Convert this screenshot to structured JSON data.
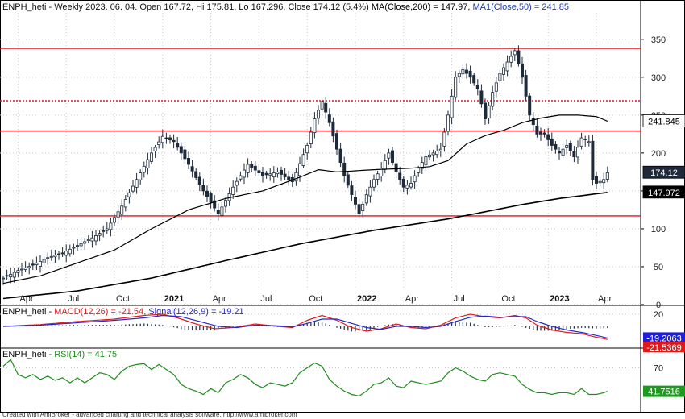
{
  "chart_data": {
    "type": "candlestick",
    "colors": {
      "up": "#ffffff",
      "down": "#1e2a3a",
      "wick": "#1e2a3a",
      "ma200": "#000000",
      "ma50": "#000000",
      "hline": "#e0141e",
      "macd": "#dc1e1e",
      "signal": "#2828c8",
      "hist": "#2a3850",
      "rsi": "#1e8c1e",
      "grid": "#c8c8c8"
    },
    "header": {
      "prefix": "ENPH_heti - Weekly 2023. 06. 04. Open 167.72, Hi 175.81, Lo 167.296, Close 174.12 (5.4%) ",
      "ma200_label": "MA(Close,200) = 147.97, ",
      "ma50_label": "MA1(Close,50) = 241.85"
    },
    "price_panel": {
      "ylim": [
        0,
        370
      ],
      "yticks": [
        0,
        50,
        100,
        150,
        200,
        250,
        300,
        350
      ],
      "x_labels": [
        {
          "label": "Apr",
          "week": 4,
          "bold": false
        },
        {
          "label": "Jul",
          "week": 17,
          "bold": false
        },
        {
          "label": "Oct",
          "week": 30,
          "bold": false
        },
        {
          "label": "2021",
          "week": 43,
          "bold": true
        },
        {
          "label": "Apr",
          "week": 56,
          "bold": false
        },
        {
          "label": "Jul",
          "week": 69,
          "bold": false
        },
        {
          "label": "Oct",
          "week": 82,
          "bold": false
        },
        {
          "label": "2022",
          "week": 95,
          "bold": true
        },
        {
          "label": "Apr",
          "week": 108,
          "bold": false
        },
        {
          "label": "Jul",
          "week": 121,
          "bold": false
        },
        {
          "label": "Oct",
          "week": 134,
          "bold": false
        },
        {
          "label": "2023",
          "week": 147,
          "bold": true
        },
        {
          "label": "Apr",
          "week": 160,
          "bold": false
        }
      ],
      "horizontal_lines": [
        {
          "value": 338,
          "style": "solid"
        },
        {
          "value": 269,
          "style": "dotted"
        },
        {
          "value": 229,
          "style": "solid"
        },
        {
          "value": 117,
          "style": "solid"
        }
      ],
      "price_tags": [
        {
          "label": "241.845",
          "value": 241.845,
          "bg": "#ffffff",
          "fg": "#000000"
        },
        {
          "label": "174.12",
          "value": 174.12,
          "bg": "#1e2a3a",
          "fg": "#ffffff"
        },
        {
          "label": "147.972",
          "value": 147.972,
          "bg": "#000000",
          "fg": "#ffffff"
        }
      ],
      "close_anchors": [
        [
          0,
          35
        ],
        [
          4,
          45
        ],
        [
          8,
          52
        ],
        [
          12,
          62
        ],
        [
          16,
          68
        ],
        [
          20,
          78
        ],
        [
          24,
          88
        ],
        [
          28,
          100
        ],
        [
          32,
          130
        ],
        [
          36,
          165
        ],
        [
          40,
          200
        ],
        [
          43,
          222
        ],
        [
          46,
          215
        ],
        [
          50,
          185
        ],
        [
          54,
          150
        ],
        [
          58,
          120
        ],
        [
          62,
          155
        ],
        [
          66,
          185
        ],
        [
          70,
          170
        ],
        [
          74,
          175
        ],
        [
          78,
          162
        ],
        [
          82,
          210
        ],
        [
          84,
          245
        ],
        [
          86,
          268
        ],
        [
          88,
          240
        ],
        [
          90,
          205
        ],
        [
          92,
          170
        ],
        [
          94,
          145
        ],
        [
          96,
          120
        ],
        [
          98,
          145
        ],
        [
          100,
          165
        ],
        [
          102,
          180
        ],
        [
          104,
          200
        ],
        [
          106,
          175
        ],
        [
          108,
          155
        ],
        [
          110,
          160
        ],
        [
          112,
          180
        ],
        [
          114,
          195
        ],
        [
          116,
          200
        ],
        [
          118,
          205
        ],
        [
          120,
          250
        ],
        [
          122,
          300
        ],
        [
          124,
          310
        ],
        [
          126,
          300
        ],
        [
          128,
          285
        ],
        [
          130,
          245
        ],
        [
          132,
          280
        ],
        [
          134,
          305
        ],
        [
          136,
          320
        ],
        [
          138,
          335
        ],
        [
          140,
          300
        ],
        [
          142,
          250
        ],
        [
          144,
          225
        ],
        [
          146,
          225
        ],
        [
          148,
          210
        ],
        [
          150,
          200
        ],
        [
          152,
          210
        ],
        [
          154,
          195
        ],
        [
          156,
          220
        ],
        [
          158,
          215
        ],
        [
          159,
          165
        ],
        [
          160,
          160
        ],
        [
          162,
          165
        ],
        [
          163,
          174
        ]
      ],
      "ma200_anchors": [
        [
          0,
          8
        ],
        [
          20,
          18
        ],
        [
          40,
          35
        ],
        [
          60,
          58
        ],
        [
          80,
          80
        ],
        [
          100,
          98
        ],
        [
          120,
          113
        ],
        [
          140,
          132
        ],
        [
          150,
          140
        ],
        [
          163,
          148
        ]
      ],
      "ma50_anchors": [
        [
          0,
          28
        ],
        [
          10,
          38
        ],
        [
          20,
          55
        ],
        [
          30,
          72
        ],
        [
          40,
          100
        ],
        [
          50,
          125
        ],
        [
          60,
          140
        ],
        [
          70,
          150
        ],
        [
          80,
          168
        ],
        [
          85,
          178
        ],
        [
          90,
          175
        ],
        [
          100,
          178
        ],
        [
          110,
          180
        ],
        [
          115,
          182
        ],
        [
          120,
          190
        ],
        [
          125,
          212
        ],
        [
          130,
          223
        ],
        [
          135,
          230
        ],
        [
          140,
          240
        ],
        [
          145,
          246
        ],
        [
          150,
          250
        ],
        [
          155,
          250
        ],
        [
          160,
          248
        ],
        [
          163,
          242
        ]
      ]
    },
    "macd_panel": {
      "title_prefix": "ENPH_heti - ",
      "macd_label": "MACD(12,26) = -21.54, ",
      "signal_label": "Signal(12,26,9) = -19.21",
      "ylim": [
        -32,
        32
      ],
      "yticks": [
        20
      ],
      "macd_tag": "-21.5369",
      "signal_tag": "-19.2063",
      "macd_last": -21.54,
      "signal_last": -19.21,
      "macd_anchors": [
        [
          0,
          0
        ],
        [
          10,
          3
        ],
        [
          20,
          8
        ],
        [
          30,
          12
        ],
        [
          38,
          18
        ],
        [
          43,
          20
        ],
        [
          47,
          14
        ],
        [
          52,
          4
        ],
        [
          57,
          -4
        ],
        [
          62,
          -2
        ],
        [
          68,
          4
        ],
        [
          74,
          0
        ],
        [
          78,
          -2
        ],
        [
          82,
          10
        ],
        [
          86,
          18
        ],
        [
          90,
          10
        ],
        [
          94,
          -2
        ],
        [
          98,
          -8
        ],
        [
          102,
          -4
        ],
        [
          106,
          4
        ],
        [
          110,
          -2
        ],
        [
          114,
          -4
        ],
        [
          118,
          2
        ],
        [
          122,
          14
        ],
        [
          126,
          20
        ],
        [
          130,
          16
        ],
        [
          134,
          14
        ],
        [
          138,
          18
        ],
        [
          141,
          14
        ],
        [
          144,
          2
        ],
        [
          148,
          -6
        ],
        [
          152,
          -10
        ],
        [
          156,
          -12
        ],
        [
          160,
          -18
        ],
        [
          163,
          -21.54
        ]
      ],
      "signal_anchors": [
        [
          0,
          0
        ],
        [
          10,
          2
        ],
        [
          20,
          6
        ],
        [
          30,
          10
        ],
        [
          38,
          14
        ],
        [
          43,
          18
        ],
        [
          48,
          16
        ],
        [
          53,
          8
        ],
        [
          58,
          0
        ],
        [
          63,
          -2
        ],
        [
          68,
          2
        ],
        [
          74,
          1
        ],
        [
          78,
          -1
        ],
        [
          82,
          5
        ],
        [
          86,
          12
        ],
        [
          90,
          12
        ],
        [
          94,
          5
        ],
        [
          98,
          -2
        ],
        [
          102,
          -5
        ],
        [
          106,
          0
        ],
        [
          110,
          0
        ],
        [
          114,
          -2
        ],
        [
          118,
          0
        ],
        [
          122,
          8
        ],
        [
          126,
          15
        ],
        [
          130,
          17
        ],
        [
          134,
          15
        ],
        [
          138,
          16
        ],
        [
          141,
          16
        ],
        [
          144,
          8
        ],
        [
          148,
          0
        ],
        [
          152,
          -6
        ],
        [
          156,
          -10
        ],
        [
          160,
          -15
        ],
        [
          163,
          -19.21
        ]
      ]
    },
    "rsi_panel": {
      "title_prefix": "ENPH_heti - ",
      "rsi_label": "RSI(14) = 41.75",
      "ylim": [
        20,
        88
      ],
      "yticks": [
        70
      ],
      "rsi_tag": "41.7516",
      "rsi_last": 41.75,
      "rsi_anchors": [
        [
          0,
          72
        ],
        [
          2,
          80
        ],
        [
          4,
          62
        ],
        [
          6,
          58
        ],
        [
          8,
          62
        ],
        [
          10,
          56
        ],
        [
          12,
          60
        ],
        [
          14,
          55
        ],
        [
          16,
          58
        ],
        [
          18,
          52
        ],
        [
          20,
          58
        ],
        [
          22,
          52
        ],
        [
          24,
          58
        ],
        [
          26,
          64
        ],
        [
          28,
          62
        ],
        [
          30,
          56
        ],
        [
          32,
          66
        ],
        [
          34,
          72
        ],
        [
          36,
          74
        ],
        [
          38,
          75
        ],
        [
          40,
          68
        ],
        [
          42,
          74
        ],
        [
          44,
          68
        ],
        [
          46,
          62
        ],
        [
          48,
          50
        ],
        [
          50,
          45
        ],
        [
          52,
          42
        ],
        [
          54,
          38
        ],
        [
          56,
          45
        ],
        [
          58,
          40
        ],
        [
          60,
          52
        ],
        [
          62,
          56
        ],
        [
          64,
          62
        ],
        [
          66,
          58
        ],
        [
          68,
          50
        ],
        [
          70,
          46
        ],
        [
          72,
          52
        ],
        [
          74,
          50
        ],
        [
          76,
          48
        ],
        [
          78,
          52
        ],
        [
          80,
          64
        ],
        [
          82,
          70
        ],
        [
          84,
          76
        ],
        [
          86,
          72
        ],
        [
          88,
          56
        ],
        [
          90,
          48
        ],
        [
          92,
          42
        ],
        [
          94,
          38
        ],
        [
          96,
          36
        ],
        [
          98,
          42
        ],
        [
          100,
          50
        ],
        [
          102,
          52
        ],
        [
          104,
          58
        ],
        [
          106,
          48
        ],
        [
          108,
          46
        ],
        [
          110,
          54
        ],
        [
          112,
          52
        ],
        [
          114,
          50
        ],
        [
          116,
          52
        ],
        [
          118,
          54
        ],
        [
          120,
          64
        ],
        [
          122,
          70
        ],
        [
          124,
          66
        ],
        [
          126,
          60
        ],
        [
          128,
          56
        ],
        [
          130,
          54
        ],
        [
          132,
          62
        ],
        [
          134,
          64
        ],
        [
          136,
          62
        ],
        [
          138,
          60
        ],
        [
          140,
          50
        ],
        [
          142,
          44
        ],
        [
          144,
          40
        ],
        [
          146,
          40
        ],
        [
          148,
          38
        ],
        [
          150,
          40
        ],
        [
          152,
          40
        ],
        [
          154,
          38
        ],
        [
          156,
          45
        ],
        [
          158,
          38
        ],
        [
          160,
          38
        ],
        [
          162,
          40
        ],
        [
          163,
          41.75
        ]
      ]
    },
    "footer": "Created with AmiBroker - advanced charting and technical analysis software. http://www.amibroker.com"
  }
}
